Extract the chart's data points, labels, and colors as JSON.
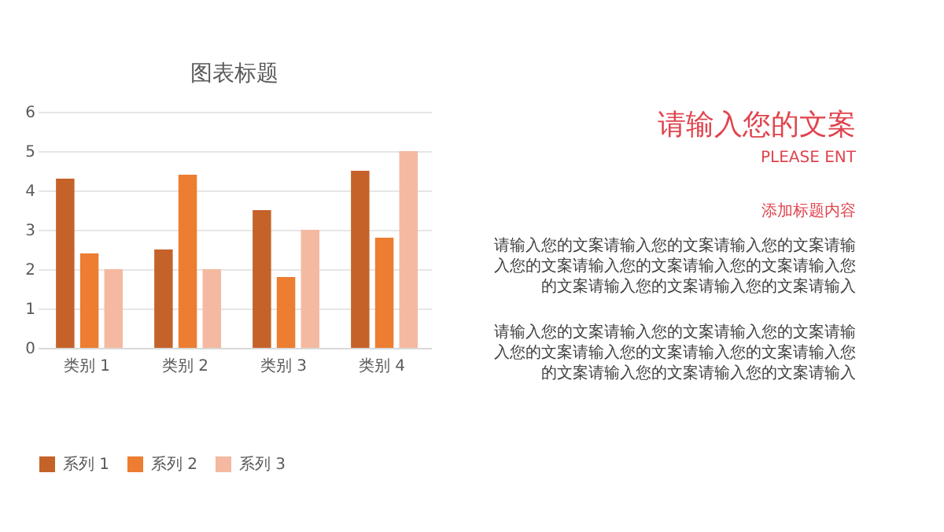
{
  "chart_data": {
    "type": "bar",
    "title": "图表标题",
    "categories": [
      "类别 1",
      "类别 2",
      "类别 3",
      "类别 4"
    ],
    "series": [
      {
        "name": "系列 1",
        "color": "#c5622a",
        "values": [
          4.3,
          2.5,
          3.5,
          4.5
        ]
      },
      {
        "name": "系列 2",
        "color": "#ed7d31",
        "values": [
          2.4,
          4.4,
          1.8,
          2.8
        ]
      },
      {
        "name": "系列 3",
        "color": "#f4b9a0",
        "values": [
          2,
          2,
          3,
          5
        ]
      }
    ],
    "ylim": [
      0,
      6
    ],
    "yticks": [
      0,
      1,
      2,
      3,
      4,
      5,
      6
    ],
    "grid": "y",
    "legend": "bottom",
    "annotations": [
      "请输入您的文案",
      "PLEASE ENT",
      "添加标题内容",
      "请输入您的文案请输入您的文案请输入您的文案请输入您的文案请输入您的文案请输入您的文案请输入您的文案请输入您的文案请输入您的文案请输入",
      "请输入您的文案请输入您的文案请输入您的文案请输入您的文案请输入您的文案请输入您的文案请输入您的文案请输入您的文案请输入您的文案请输入"
    ]
  }
}
